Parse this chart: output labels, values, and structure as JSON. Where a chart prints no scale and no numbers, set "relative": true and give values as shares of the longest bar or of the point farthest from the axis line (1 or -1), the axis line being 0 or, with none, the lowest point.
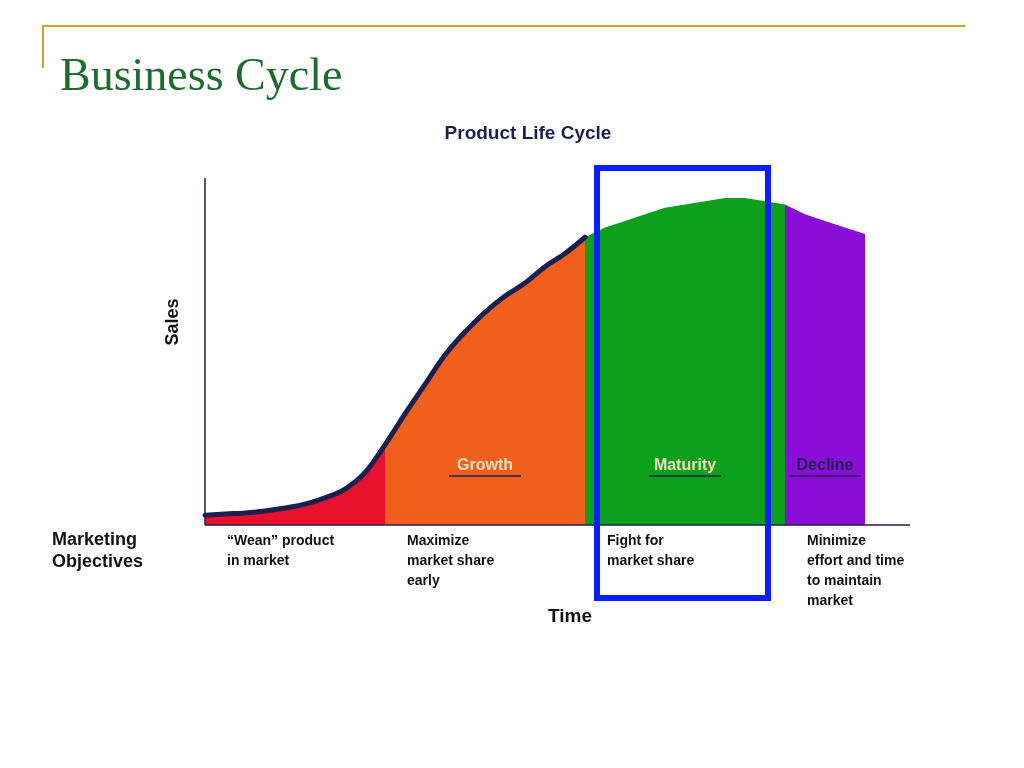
{
  "chart_data": {
    "type": "area",
    "title": "Business Cycle",
    "subtitle": "Product Life Cycle",
    "xlabel": "Time",
    "ylabel": "Sales",
    "relative": true,
    "categories": [
      null,
      null,
      null,
      null,
      null,
      null,
      null,
      null,
      null,
      null,
      null,
      null,
      null,
      null,
      null,
      null,
      null,
      null,
      null,
      null,
      null,
      null,
      null,
      null,
      null,
      null,
      null,
      null,
      null,
      null,
      null,
      null,
      null,
      null
    ],
    "series": [
      {
        "color": "#e8112d",
        "values": [
          0.03,
          0.034,
          0.037,
          0.043,
          0.052,
          0.064,
          0.083,
          0.11,
          0.16,
          0.245,
          null,
          null,
          null,
          null,
          null,
          null,
          null,
          null,
          null,
          null,
          null,
          null,
          null,
          null,
          null,
          null,
          null,
          null,
          null,
          null,
          null,
          null,
          null,
          null
        ]
      },
      {
        "name": "Growth",
        "color": "#f0601c",
        "values": [
          null,
          null,
          null,
          null,
          null,
          null,
          null,
          null,
          null,
          0.245,
          0.34,
          0.43,
          0.52,
          0.59,
          0.65,
          0.7,
          0.74,
          0.79,
          0.83,
          0.88,
          null,
          null,
          null,
          null,
          null,
          null,
          null,
          null,
          null,
          null,
          null,
          null,
          null,
          null
        ]
      },
      {
        "name": "Maturity",
        "color": "#0ca01c",
        "values": [
          null,
          null,
          null,
          null,
          null,
          null,
          null,
          null,
          null,
          null,
          null,
          null,
          null,
          null,
          null,
          null,
          null,
          null,
          null,
          0.88,
          0.91,
          0.93,
          0.95,
          0.97,
          0.98,
          0.99,
          1,
          1,
          0.99,
          0.98,
          null,
          null,
          null,
          null
        ]
      },
      {
        "name": "Decline",
        "color": "#8a0ed8",
        "values": [
          null,
          null,
          null,
          null,
          null,
          null,
          null,
          null,
          null,
          null,
          null,
          null,
          null,
          null,
          null,
          null,
          null,
          null,
          null,
          null,
          null,
          null,
          null,
          null,
          null,
          null,
          null,
          null,
          null,
          0.98,
          0.95,
          0.93,
          0.91,
          0.89
        ]
      },
      {
        "type": "line",
        "color": "#1b1f4f",
        "values": [
          0.03,
          0.034,
          0.037,
          0.043,
          0.052,
          0.064,
          0.083,
          0.11,
          0.16,
          0.245,
          0.34,
          0.43,
          0.52,
          0.59,
          0.65,
          0.7,
          0.74,
          0.79,
          0.83,
          0.88,
          null,
          null,
          null,
          null,
          null,
          null,
          null,
          null,
          null,
          null,
          null,
          null,
          null,
          null
        ]
      }
    ],
    "annotations": [
      "Marketing\nObjectives",
      "“Wean” product\nin market",
      "Maximize\nmarket share\nearly",
      "Fight for\nmarket share",
      "Minimize\neffort and time\nto maintain\nmarket"
    ]
  }
}
